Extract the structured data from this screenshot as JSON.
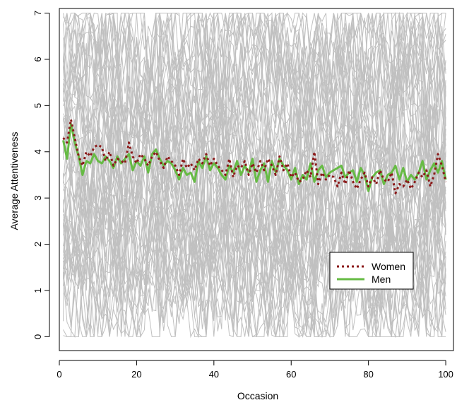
{
  "chart_data": {
    "type": "line",
    "title": "",
    "xlabel": "Occasion",
    "ylabel": "Average Attentiveness",
    "xlim": [
      0,
      102
    ],
    "ylim": [
      -0.3,
      7.1
    ],
    "xticks": [
      0,
      20,
      40,
      60,
      80,
      100
    ],
    "yticks": [
      0,
      1,
      2,
      3,
      4,
      5,
      6,
      7
    ],
    "grid": false,
    "legend": {
      "placement": "bottom-right",
      "entries": [
        "Women",
        "Men"
      ]
    },
    "background_individuals": {
      "description_color": "#c0c0c0",
      "count": 60,
      "x_range": [
        1,
        100
      ],
      "value_range": [
        0,
        7
      ]
    },
    "series": [
      {
        "name": "Women",
        "color": "#8b1a1a",
        "style": "dotted",
        "x": [
          1,
          2,
          3,
          4,
          5,
          6,
          7,
          8,
          9,
          10,
          11,
          12,
          13,
          14,
          15,
          16,
          17,
          18,
          19,
          20,
          21,
          22,
          23,
          24,
          25,
          26,
          27,
          28,
          29,
          30,
          31,
          32,
          33,
          34,
          35,
          36,
          37,
          38,
          39,
          40,
          41,
          42,
          43,
          44,
          45,
          46,
          47,
          48,
          49,
          50,
          51,
          52,
          53,
          54,
          55,
          56,
          57,
          58,
          59,
          60,
          61,
          62,
          63,
          64,
          65,
          66,
          67,
          68,
          69,
          70,
          71,
          72,
          73,
          74,
          75,
          76,
          77,
          78,
          79,
          80,
          81,
          82,
          83,
          84,
          85,
          86,
          87,
          88,
          89,
          90,
          91,
          92,
          93,
          94,
          95,
          96,
          97,
          98,
          99,
          100
        ],
        "values": [
          4.3,
          4.2,
          4.7,
          4.3,
          3.9,
          3.7,
          4.0,
          3.9,
          4.1,
          4.15,
          4.1,
          3.8,
          4.0,
          3.7,
          3.85,
          3.8,
          3.75,
          4.2,
          3.9,
          3.75,
          3.95,
          3.85,
          3.7,
          3.9,
          4.0,
          3.8,
          3.65,
          3.9,
          3.8,
          3.7,
          3.5,
          3.85,
          3.65,
          3.75,
          3.6,
          3.85,
          3.75,
          3.95,
          3.7,
          3.85,
          3.7,
          3.6,
          3.5,
          3.85,
          3.45,
          3.7,
          3.65,
          3.8,
          3.5,
          3.75,
          3.55,
          3.8,
          3.6,
          3.85,
          3.7,
          3.5,
          3.9,
          3.6,
          3.75,
          3.45,
          3.55,
          3.35,
          3.4,
          3.6,
          3.45,
          4.0,
          3.3,
          3.55,
          3.4,
          3.5,
          3.45,
          3.25,
          3.55,
          3.3,
          3.6,
          3.35,
          3.2,
          3.4,
          3.55,
          3.25,
          3.45,
          3.3,
          3.6,
          3.4,
          3.35,
          3.55,
          3.1,
          3.3,
          3.25,
          3.4,
          3.2,
          3.35,
          3.55,
          3.45,
          3.6,
          3.25,
          3.5,
          3.95,
          3.7,
          3.35
        ]
      },
      {
        "name": "Men",
        "color": "#66bb44",
        "style": "solid",
        "x": [
          1,
          2,
          3,
          4,
          5,
          6,
          7,
          8,
          9,
          10,
          11,
          12,
          13,
          14,
          15,
          16,
          17,
          18,
          19,
          20,
          21,
          22,
          23,
          24,
          25,
          26,
          27,
          28,
          29,
          30,
          31,
          32,
          33,
          34,
          35,
          36,
          37,
          38,
          39,
          40,
          41,
          42,
          43,
          44,
          45,
          46,
          47,
          48,
          49,
          50,
          51,
          52,
          53,
          54,
          55,
          56,
          57,
          58,
          59,
          60,
          61,
          62,
          63,
          64,
          65,
          66,
          67,
          68,
          69,
          70,
          71,
          72,
          73,
          74,
          75,
          76,
          77,
          78,
          79,
          80,
          81,
          82,
          83,
          84,
          85,
          86,
          87,
          88,
          89,
          90,
          91,
          92,
          93,
          94,
          95,
          96,
          97,
          98,
          99,
          100
        ],
        "values": [
          4.25,
          3.85,
          4.6,
          4.2,
          3.9,
          3.5,
          3.8,
          3.75,
          3.95,
          3.8,
          3.75,
          3.9,
          3.8,
          3.65,
          3.9,
          3.75,
          3.85,
          3.95,
          3.6,
          3.8,
          3.7,
          3.9,
          3.55,
          3.95,
          4.05,
          3.85,
          3.7,
          3.8,
          3.75,
          3.6,
          3.4,
          3.65,
          3.5,
          3.55,
          3.35,
          3.8,
          3.65,
          3.9,
          3.6,
          3.75,
          3.65,
          3.5,
          3.4,
          3.7,
          3.55,
          3.8,
          3.5,
          3.7,
          3.55,
          3.85,
          3.35,
          3.6,
          3.75,
          3.35,
          3.8,
          3.55,
          3.85,
          3.7,
          3.6,
          3.4,
          3.65,
          3.3,
          3.5,
          3.4,
          3.75,
          3.35,
          3.6,
          3.7,
          3.45,
          3.55,
          3.6,
          3.65,
          3.7,
          3.45,
          3.55,
          3.6,
          3.35,
          3.65,
          3.5,
          3.15,
          3.45,
          3.55,
          3.6,
          3.3,
          3.5,
          3.55,
          3.7,
          3.4,
          3.65,
          3.35,
          3.5,
          3.4,
          3.55,
          3.8,
          3.4,
          3.6,
          3.75,
          3.55,
          3.8,
          3.4
        ]
      }
    ]
  }
}
